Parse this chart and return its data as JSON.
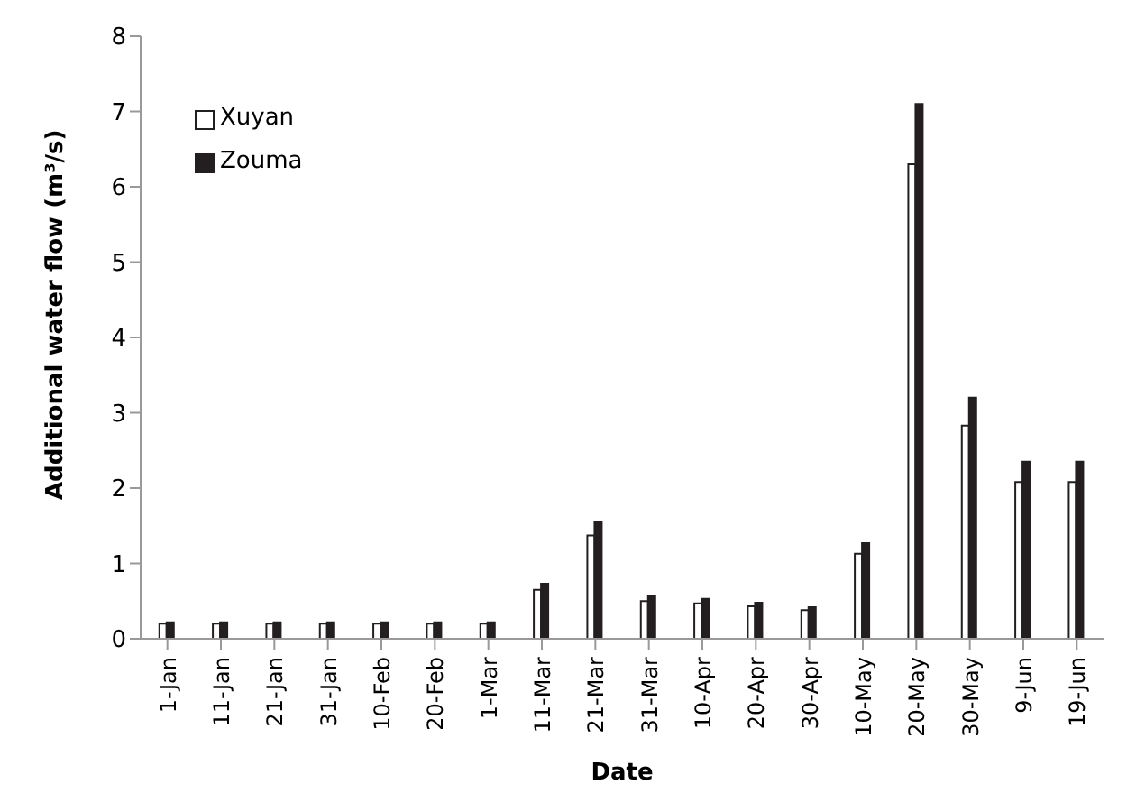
{
  "chart_data": {
    "type": "bar",
    "xlabel": "Date",
    "ylabel": "Additional water flow (m³/s)",
    "categories": [
      "1-Jan",
      "11-Jan",
      "21-Jan",
      "31-Jan",
      "10-Feb",
      "20-Feb",
      "1-Mar",
      "11-Mar",
      "21-Mar",
      "31-Mar",
      "10-Apr",
      "20-Apr",
      "30-Apr",
      "10-May",
      "20-May",
      "30-May",
      "9-Jun",
      "19-Jun"
    ],
    "series": [
      {
        "name": "Xuyan",
        "color": "#ffffff",
        "values": [
          0.2,
          0.2,
          0.2,
          0.2,
          0.2,
          0.2,
          0.2,
          0.65,
          1.37,
          0.5,
          0.47,
          0.43,
          0.38,
          1.13,
          6.3,
          2.83,
          2.08,
          2.08
        ]
      },
      {
        "name": "Zouma",
        "color": "#231f20",
        "values": [
          0.22,
          0.22,
          0.22,
          0.22,
          0.22,
          0.22,
          0.22,
          0.73,
          1.55,
          0.57,
          0.53,
          0.48,
          0.42,
          1.27,
          7.1,
          3.2,
          2.35,
          2.35
        ]
      }
    ],
    "ylim": [
      0,
      8
    ],
    "yticks": [
      0,
      1,
      2,
      3,
      4,
      5,
      6,
      7,
      8
    ],
    "grid": false,
    "legend": "top left"
  }
}
